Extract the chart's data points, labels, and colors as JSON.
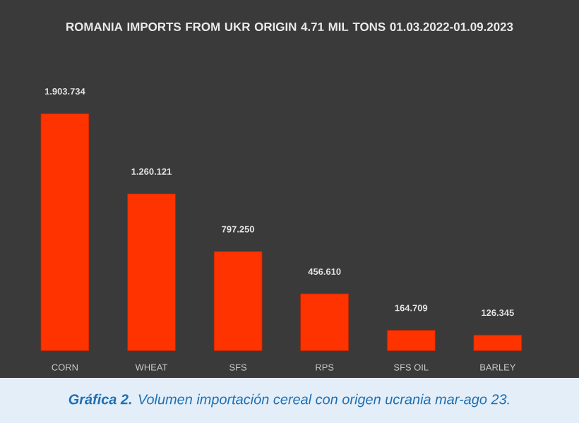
{
  "chart_data": {
    "type": "bar",
    "title": "ROMANIA IMPORTS FROM UKR ORIGIN 4.71 MIL TONS 01.03.2022-01.09.2023",
    "categories": [
      "CORN",
      "WHEAT",
      "SFS",
      "RPS",
      "SFS OIL",
      "BARLEY"
    ],
    "values": [
      1903734,
      1260121,
      797250,
      456610,
      164709,
      126345
    ],
    "value_labels": [
      "1.903.734",
      "1.260.121",
      "797.250",
      "456.610",
      "164.709",
      "126.345"
    ],
    "color": "#ff3300",
    "annotations": [
      "**Gráfica 2.** Volumen importación cereal con origen ucrania mar-ago 23."
    ]
  }
}
